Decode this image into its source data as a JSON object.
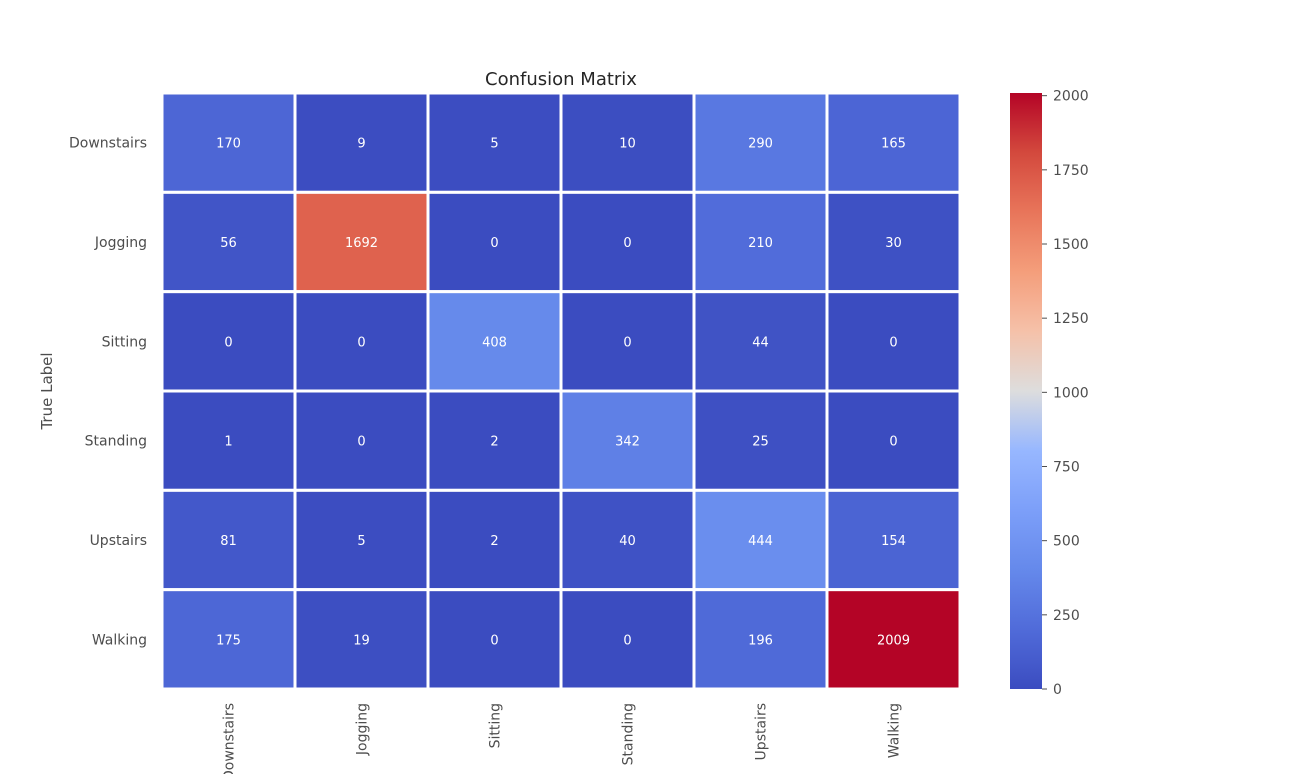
{
  "chart_data": {
    "type": "heatmap",
    "title": "Confusion Matrix",
    "ylabel": "True Label",
    "xlabel": "",
    "row_labels": [
      "Downstairs",
      "Jogging",
      "Sitting",
      "Standing",
      "Upstairs",
      "Walking"
    ],
    "col_labels": [
      "Downstairs",
      "Jogging",
      "Sitting",
      "Standing",
      "Upstairs",
      "Walking"
    ],
    "values": [
      [
        170,
        9,
        5,
        10,
        290,
        165
      ],
      [
        56,
        1692,
        0,
        0,
        210,
        30
      ],
      [
        0,
        0,
        408,
        0,
        44,
        0
      ],
      [
        1,
        0,
        2,
        342,
        25,
        0
      ],
      [
        81,
        5,
        2,
        40,
        444,
        154
      ],
      [
        175,
        19,
        0,
        0,
        196,
        2009
      ]
    ],
    "colormap": "coolwarm",
    "vmin": 0,
    "vmax": 2009,
    "colorbar_ticks": [
      0,
      250,
      500,
      750,
      1000,
      1250,
      1500,
      1750,
      2000
    ],
    "grid_line_color": "#ffffff"
  }
}
